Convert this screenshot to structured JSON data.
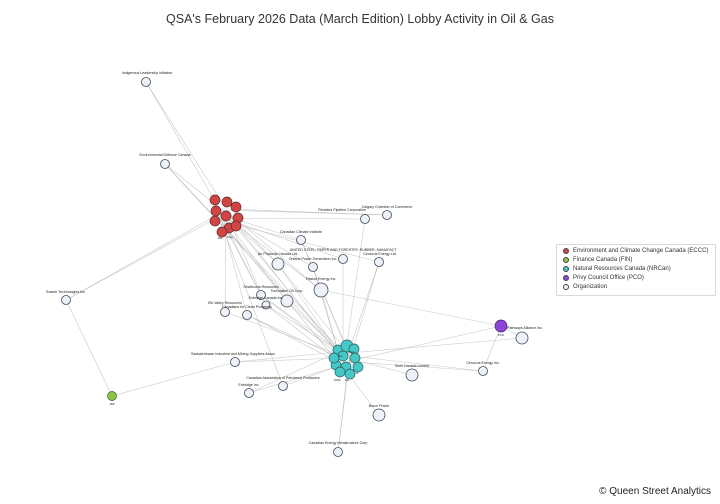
{
  "title": "QSA's February 2026 Data (March Edition) Lobby Activity in Oil & Gas",
  "footer": "© Queen Street Analytics",
  "legend": [
    {
      "label": "Environment and Climate Change Canada (ECCC)",
      "color": "#d24545"
    },
    {
      "label": "Finance Canada (FIN)",
      "color": "#8bc34a"
    },
    {
      "label": "Natural Resources Canada (NRCan)",
      "color": "#44c8c8"
    },
    {
      "label": "Privy Council Office (PCO)",
      "color": "#8e44d6"
    },
    {
      "label": "Organization",
      "color": "#eef2f8"
    }
  ],
  "hubs": {
    "eccc": {
      "color": "#d24545",
      "labels": [
        "JRF",
        "Dep"
      ]
    },
    "fin": {
      "color": "#8bc34a",
      "label": "JRF"
    },
    "nrcan": {
      "color": "#44c8c8",
      "labels": [
        "Min",
        "Dep",
        "ADM",
        "DG",
        "Sr"
      ]
    },
    "pco": {
      "color": "#8e44d6",
      "label": "PCO"
    }
  },
  "organizations": [
    {
      "id": "ili",
      "label": "Indigenous Leadership Initiative"
    },
    {
      "id": "edc",
      "label": "Environmental Defence Canada"
    },
    {
      "id": "ppc",
      "label": "Pembina Pipeline Corporation"
    },
    {
      "id": "ccc",
      "label": "Calgary Chamber of Commerce"
    },
    {
      "id": "dci",
      "label": "Canadian Climate Institute"
    },
    {
      "id": "usw",
      "label": "UNITED STEEL, PAPER AND FORESTRY, RUBBER, MANUFACT"
    },
    {
      "id": "cpc",
      "label": "Air Products Canada Ltd."
    },
    {
      "id": "opg",
      "label": "Ontario Power Generation Inc."
    },
    {
      "id": "cvl",
      "label": "Cenovus Energy Ltd."
    },
    {
      "id": "fns",
      "label": "Fission Energy Inc."
    },
    {
      "id": "str",
      "label": "Strathcona Resources"
    },
    {
      "id": "tgo",
      "label": "Tourmaline Oil Corp."
    },
    {
      "id": "ecv",
      "label": "Enbridge Canada Inc."
    },
    {
      "id": "evr",
      "label": "Elk Valley Resources"
    },
    {
      "id": "ccp",
      "label": "Canadians for Clean Prosperity"
    },
    {
      "id": "sct",
      "label": "Svante Technologies Inc."
    },
    {
      "id": "pat",
      "label": "Pathways Alliance Inc."
    },
    {
      "id": "sima",
      "label": "Saskatchewan Industrial and Mining Suppliers Assoc"
    },
    {
      "id": "capp",
      "label": "Canadian Association of Petroleum Producers"
    },
    {
      "id": "enb",
      "label": "Enbridge Inc."
    },
    {
      "id": "scl",
      "label": "Shell Canada Limited"
    },
    {
      "id": "cen",
      "label": "Cenovus Energy Inc."
    },
    {
      "id": "brp",
      "label": "Bruce Power"
    },
    {
      "id": "ceic",
      "label": "Canadian Energy Infrastructure Corp"
    }
  ]
}
